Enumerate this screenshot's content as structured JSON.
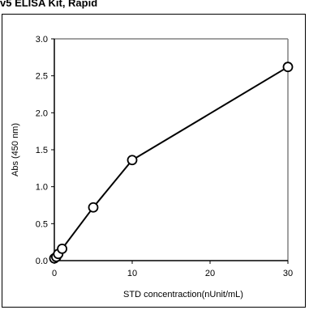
{
  "header": {
    "title": "v5 ELISA Kit, Rapid"
  },
  "chart_data": {
    "type": "scatter",
    "title": "",
    "xlabel": "STD concentraction(nUnit/mL)",
    "ylabel": "Abs (450 nm)",
    "xlim": [
      0,
      30
    ],
    "ylim": [
      0,
      3.0
    ],
    "x_ticks": [
      "0",
      "10",
      "20",
      "30"
    ],
    "y_ticks": [
      "0.0",
      "0.5",
      "1.0",
      "1.5",
      "2.0",
      "2.5",
      "3.0"
    ],
    "grid": false,
    "legend": "none",
    "series": [
      {
        "x": [
          0,
          0.25,
          0.5,
          1,
          5,
          10,
          30
        ],
        "y": [
          0.03,
          0.05,
          0.09,
          0.16,
          0.72,
          1.36,
          2.62
        ],
        "marker": "open-circle",
        "line": "solid"
      }
    ],
    "colors": {
      "line": "#000000",
      "marker_fill": "#ffffff",
      "marker_stroke": "#000000",
      "axis": "#000000",
      "plot_frame": "#808080"
    }
  }
}
